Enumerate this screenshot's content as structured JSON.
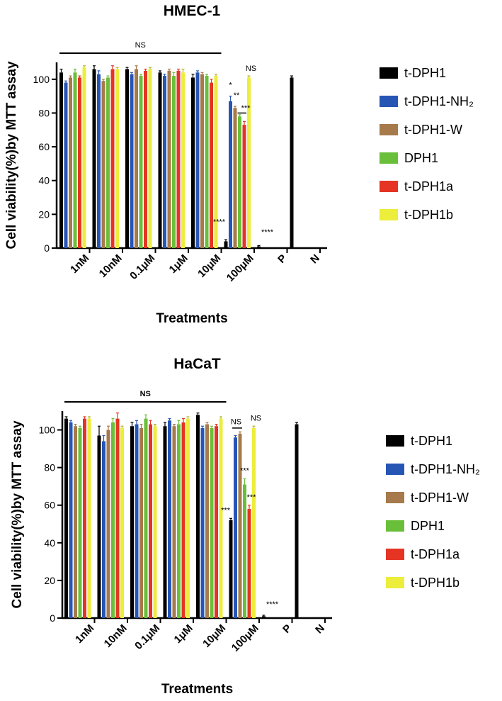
{
  "chart_data": [
    {
      "type": "bar",
      "title": "HMEC-1",
      "xlabel": "Treatments",
      "ylabel": "Cell viability(%)by MTT assay",
      "ylim": [
        0,
        110
      ],
      "yticks": [
        0,
        20,
        40,
        60,
        80,
        100
      ],
      "categories": [
        "1nM",
        "10nM",
        "0.1μM",
        "1μM",
        "10μM",
        "100μM",
        "P",
        "N"
      ],
      "legend_position": "right",
      "series": [
        {
          "name": "t-DPH1",
          "color": "#000000",
          "values": [
            104,
            106,
            106,
            104,
            101,
            4,
            1,
            101
          ],
          "errors": [
            2,
            2,
            1,
            1,
            2,
            1,
            0.5,
            1
          ]
        },
        {
          "name": "t-DPH1-NH₂",
          "color": "#2655b4",
          "values": [
            98,
            103,
            103,
            102,
            104,
            87,
            null,
            null
          ],
          "errors": [
            1,
            2,
            1,
            1,
            1,
            3,
            null,
            null
          ]
        },
        {
          "name": "t-DPH1-W",
          "color": "#a67a4a",
          "values": [
            101,
            99,
            106,
            105,
            103,
            83,
            null,
            null
          ],
          "errors": [
            1,
            1,
            2,
            1,
            1,
            1,
            null,
            null
          ]
        },
        {
          "name": "DPH1",
          "color": "#6abf3a",
          "values": [
            104,
            101,
            102,
            102,
            102,
            78,
            null,
            null
          ],
          "errors": [
            2,
            1,
            1,
            2,
            1,
            1,
            null,
            null
          ]
        },
        {
          "name": "t-DPH1a",
          "color": "#e53423",
          "values": [
            101,
            106,
            105,
            105,
            98,
            73,
            null,
            null
          ],
          "errors": [
            1,
            2,
            1,
            1,
            2,
            2,
            null,
            null
          ]
        },
        {
          "name": "t-DPH1b",
          "color": "#eded3c",
          "values": [
            107,
            106,
            106,
            104,
            102,
            101,
            null,
            null
          ],
          "errors": [
            1,
            1,
            1,
            2,
            1,
            1,
            null,
            null
          ]
        }
      ],
      "annotations": {
        "ns_bar": "NS",
        "group6": [
          "****",
          "*",
          "**",
          "***",
          "NS"
        ],
        "positive": "****"
      }
    },
    {
      "type": "bar",
      "title": "HaCaT",
      "xlabel": "Treatments",
      "ylabel": "Cell viability(%)by MTT assay",
      "ylim": [
        0,
        110
      ],
      "yticks": [
        0,
        20,
        40,
        60,
        80,
        100
      ],
      "categories": [
        "1nM",
        "10nM",
        "0.1μM",
        "1μM",
        "10μM",
        "100μM",
        "P",
        "N"
      ],
      "legend_position": "right",
      "series": [
        {
          "name": "t-DPH1",
          "color": "#000000",
          "values": [
            106,
            97,
            102,
            102,
            108,
            52,
            1,
            103
          ],
          "errors": [
            1,
            5,
            2,
            2,
            1,
            1,
            0.5,
            1
          ]
        },
        {
          "name": "t-DPH1-NH₂",
          "color": "#2655b4",
          "values": [
            104,
            94,
            103,
            105,
            101,
            96,
            null,
            null
          ],
          "errors": [
            1,
            3,
            2,
            1,
            1,
            1,
            null,
            null
          ]
        },
        {
          "name": "t-DPH1-W",
          "color": "#a67a4a",
          "values": [
            102,
            100,
            101,
            102,
            103,
            98,
            null,
            null
          ],
          "errors": [
            1,
            2,
            2,
            1,
            1,
            1,
            null,
            null
          ]
        },
        {
          "name": "DPH1",
          "color": "#6abf3a",
          "values": [
            101,
            104,
            106,
            103,
            101,
            71,
            null,
            null
          ],
          "errors": [
            1,
            2,
            2,
            2,
            1,
            3,
            null,
            null
          ]
        },
        {
          "name": "t-DPH1a",
          "color": "#e53423",
          "values": [
            106,
            106,
            103,
            104,
            102,
            58,
            null,
            null
          ],
          "errors": [
            1,
            3,
            2,
            2,
            1,
            2,
            null,
            null
          ]
        },
        {
          "name": "t-DPH1b",
          "color": "#eded3c",
          "values": [
            106,
            101,
            102,
            106,
            106,
            101,
            null,
            null
          ],
          "errors": [
            1,
            1,
            1,
            1,
            1,
            1,
            null,
            null
          ]
        }
      ],
      "annotations": {
        "ns_bar": "NS",
        "group6": [
          "***",
          "NS",
          "***",
          "***",
          "NS"
        ],
        "positive": "****"
      }
    }
  ]
}
